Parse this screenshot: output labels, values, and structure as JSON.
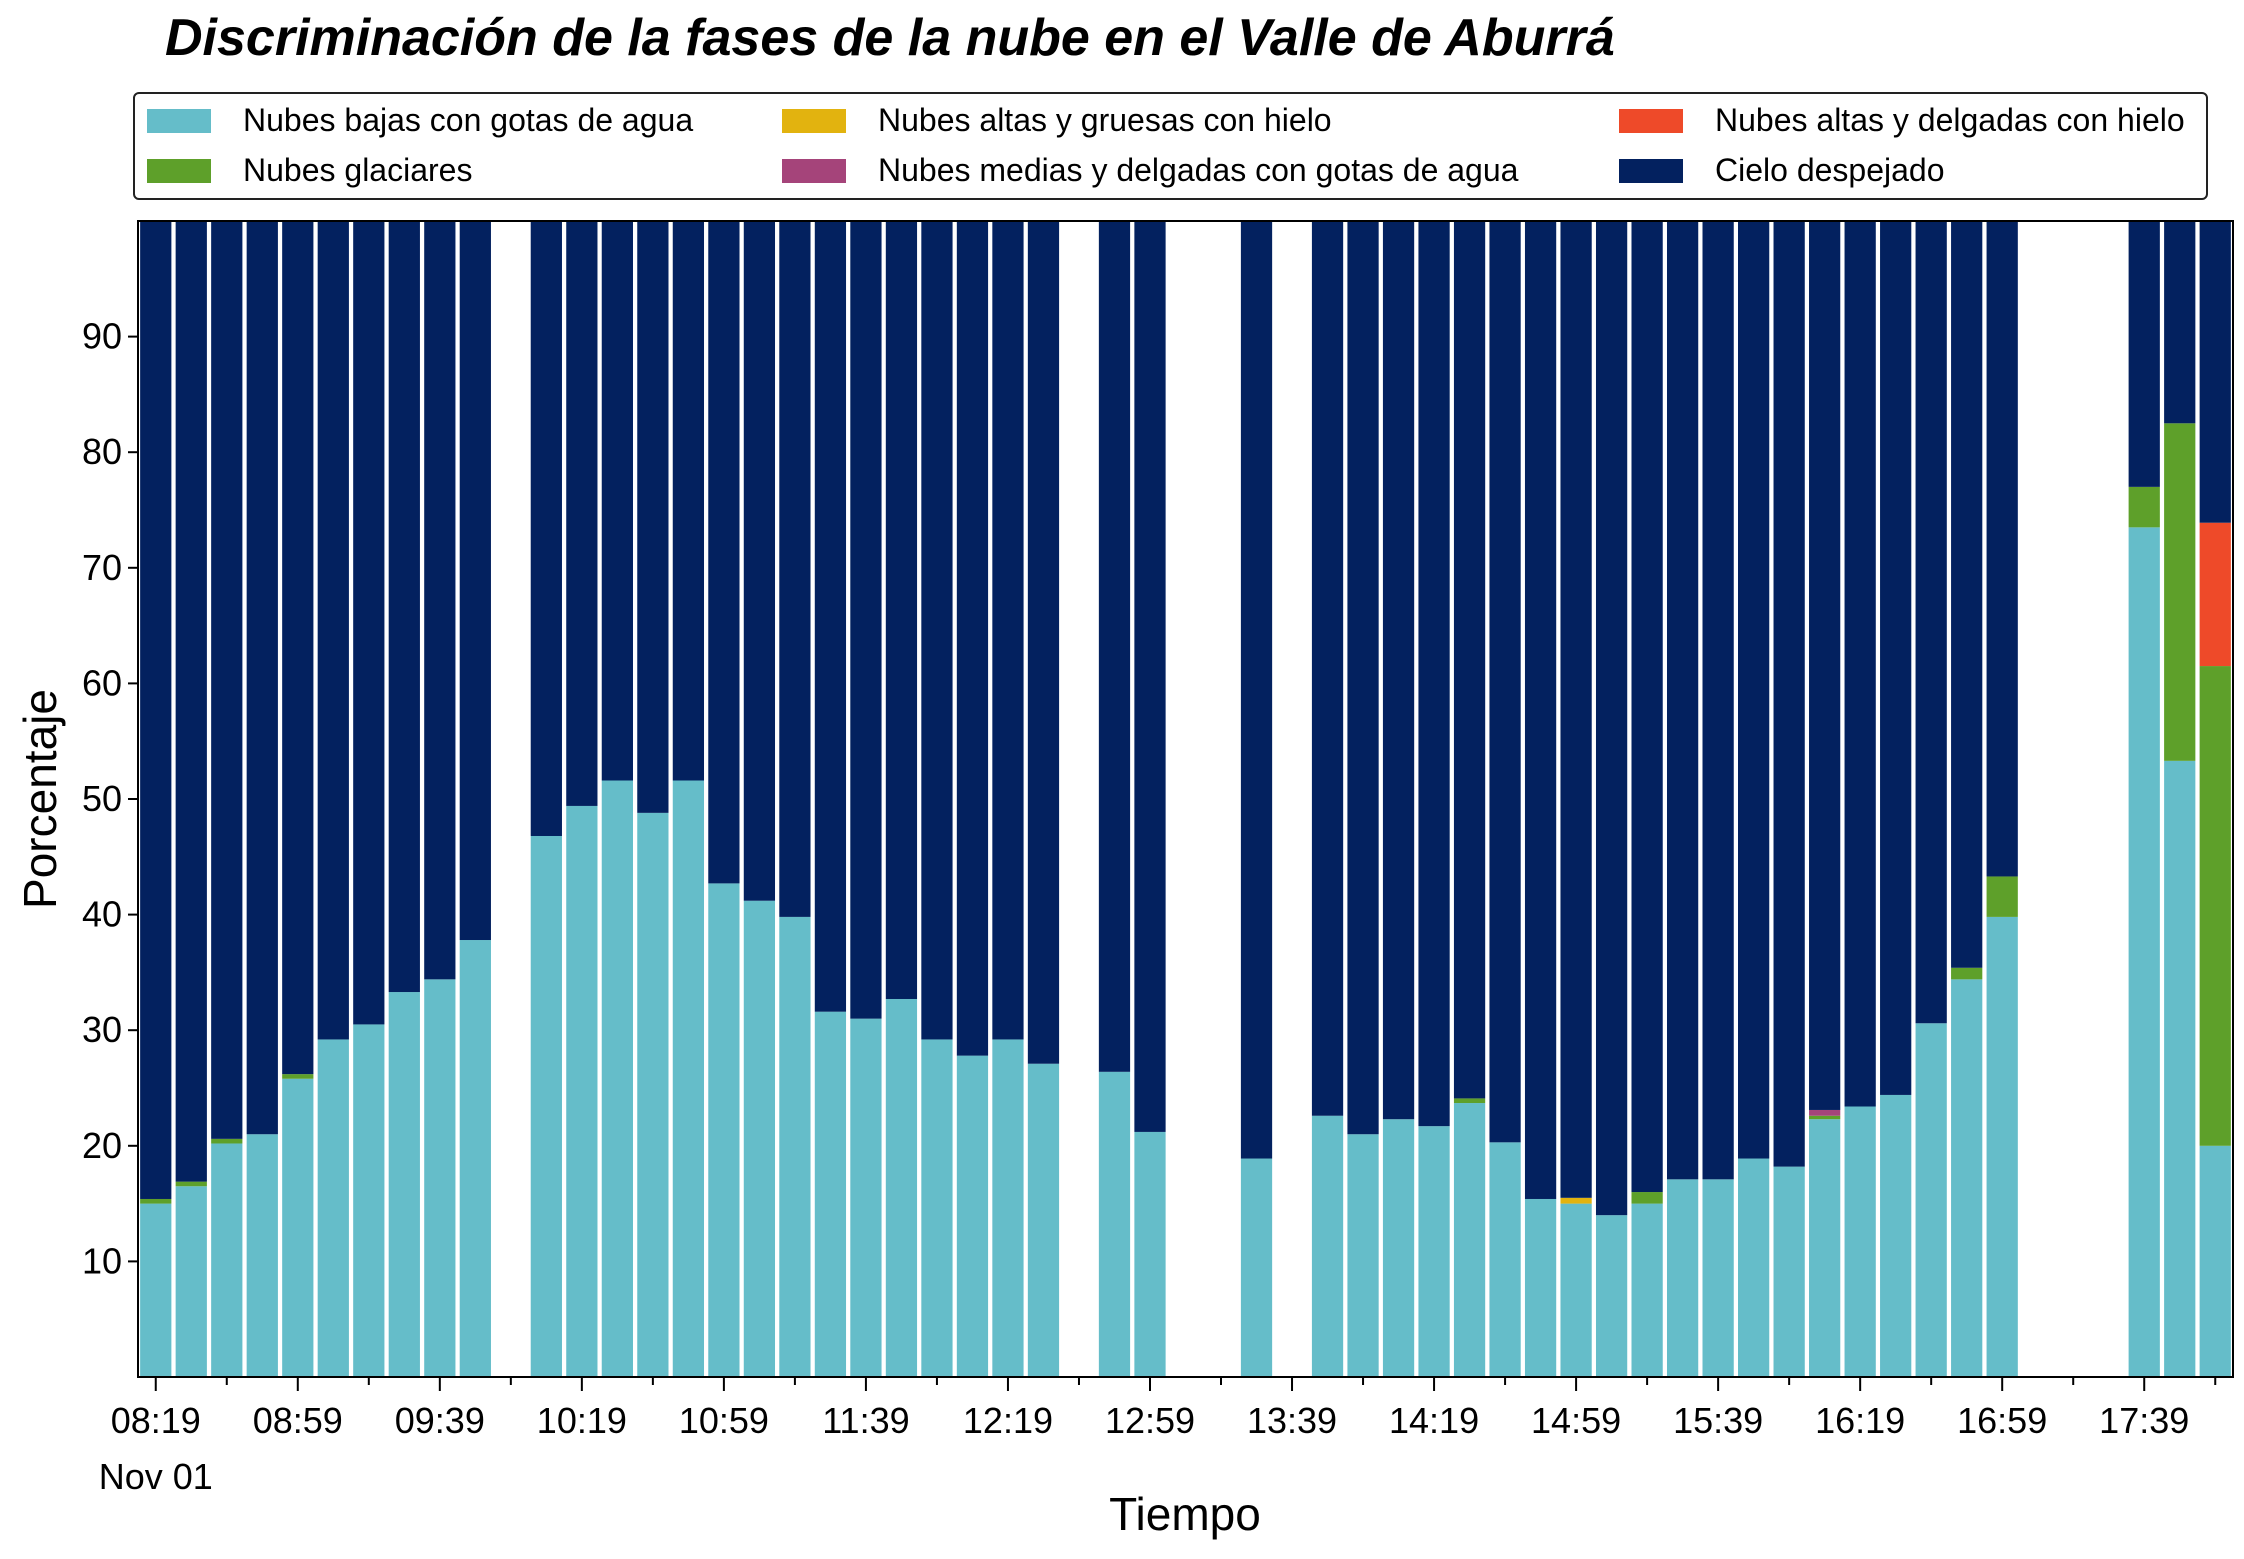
{
  "chart_data": {
    "type": "bar",
    "title": "Discriminación de la fases de la nube en el Valle de Aburrá",
    "xlabel": "Tiempo",
    "ylabel": "Porcentaje",
    "ylim": [
      0,
      100
    ],
    "yticks": [
      10,
      20,
      30,
      40,
      50,
      60,
      70,
      80,
      90
    ],
    "stacked": true,
    "grid": false,
    "legend_position": "top",
    "x_tick_labels": [
      "08:19",
      "08:59",
      "09:39",
      "10:19",
      "10:59",
      "11:39",
      "12:19",
      "12:59",
      "13:39",
      "14:19",
      "14:59",
      "15:39",
      "16:19",
      "16:59",
      "17:39"
    ],
    "x_date_label": "Nov 01",
    "categories": [
      "08:19",
      "08:29",
      "08:39",
      "08:49",
      "08:59",
      "09:09",
      "09:19",
      "09:29",
      "09:39",
      "09:49",
      "09:59",
      "10:09",
      "10:19",
      "10:29",
      "10:39",
      "10:49",
      "10:59",
      "11:09",
      "11:19",
      "11:29",
      "11:39",
      "11:49",
      "11:59",
      "12:09",
      "12:19",
      "12:29",
      "12:39",
      "12:49",
      "12:59",
      "13:09",
      "13:19",
      "13:29",
      "13:39",
      "13:49",
      "13:59",
      "14:09",
      "14:19",
      "14:29",
      "14:39",
      "14:49",
      "14:59",
      "15:09",
      "15:19",
      "15:29",
      "15:39",
      "15:49",
      "15:59",
      "16:09",
      "16:19",
      "16:29",
      "16:39",
      "16:49",
      "16:59",
      "17:09",
      "17:19",
      "17:29",
      "17:39",
      "17:49",
      "17:59"
    ],
    "series": [
      {
        "name": "Nubes bajas con gotas de agua",
        "color": "#65bdc9",
        "values": [
          15.0,
          16.5,
          20.2,
          21.0,
          25.8,
          29.2,
          30.5,
          33.3,
          34.4,
          37.8,
          null,
          46.8,
          49.4,
          51.6,
          48.8,
          51.6,
          42.7,
          41.2,
          39.8,
          31.6,
          31.0,
          32.7,
          29.2,
          27.8,
          29.2,
          27.1,
          null,
          26.4,
          21.2,
          null,
          null,
          18.9,
          null,
          22.6,
          21.0,
          22.3,
          21.7,
          23.7,
          20.3,
          15.4,
          15.0,
          14.0,
          15.0,
          17.1,
          17.1,
          18.9,
          18.2,
          22.3,
          23.4,
          24.4,
          30.6,
          34.4,
          39.8,
          null,
          null,
          null,
          73.5,
          53.3,
          20.0
        ]
      },
      {
        "name": "Nubes glaciares",
        "color": "#5ea02a",
        "values": [
          0.4,
          0.4,
          0.4,
          0,
          0.4,
          0,
          0,
          0,
          0,
          0,
          null,
          0,
          0,
          0,
          0,
          0,
          0,
          0,
          0,
          0,
          0,
          0,
          0,
          0,
          0,
          0,
          null,
          0,
          0,
          null,
          null,
          0,
          null,
          0,
          0,
          0,
          0,
          0.4,
          0,
          0,
          0,
          0,
          1.0,
          0,
          0,
          0,
          0,
          0.3,
          0,
          0,
          0,
          1.0,
          3.5,
          null,
          null,
          null,
          3.5,
          29.2,
          41.5
        ]
      },
      {
        "name": "Nubes altas y gruesas con hielo",
        "color": "#e2b30f",
        "values": [
          0,
          0,
          0,
          0,
          0,
          0,
          0,
          0,
          0,
          0,
          null,
          0,
          0,
          0,
          0,
          0,
          0,
          0,
          0,
          0,
          0,
          0,
          0,
          0,
          0,
          0,
          null,
          0,
          0,
          null,
          null,
          0,
          null,
          0,
          0,
          0,
          0,
          0,
          0,
          0,
          0.5,
          0,
          0,
          0,
          0,
          0,
          0,
          0,
          0,
          0,
          0,
          0,
          0,
          null,
          null,
          null,
          0,
          0,
          0
        ]
      },
      {
        "name": "Nubes medias y delgadas con gotas de agua",
        "color": "#a5447a",
        "values": [
          0,
          0,
          0,
          0,
          0,
          0,
          0,
          0,
          0,
          0,
          null,
          0,
          0,
          0,
          0,
          0,
          0,
          0,
          0,
          0,
          0,
          0,
          0,
          0,
          0,
          0,
          null,
          0,
          0,
          null,
          null,
          0,
          null,
          0,
          0,
          0,
          0,
          0,
          0,
          0,
          0,
          0,
          0,
          0,
          0,
          0,
          0,
          0.5,
          0,
          0,
          0,
          0,
          0,
          null,
          null,
          null,
          0,
          0,
          0
        ]
      },
      {
        "name": "Nubes altas y delgadas con hielo",
        "color": "#ee4a29",
        "values": [
          0,
          0,
          0,
          0,
          0,
          0,
          0,
          0,
          0,
          0,
          null,
          0,
          0,
          0,
          0,
          0,
          0,
          0,
          0,
          0,
          0,
          0,
          0,
          0,
          0,
          0,
          null,
          0,
          0,
          null,
          null,
          0,
          null,
          0,
          0,
          0,
          0,
          0,
          0,
          0,
          0,
          0,
          0,
          0,
          0,
          0,
          0,
          0,
          0,
          0,
          0,
          0,
          0,
          null,
          null,
          null,
          0,
          0,
          12.4
        ]
      },
      {
        "name": "Cielo despejado",
        "color": "#03215f",
        "values": [
          84.6,
          83.1,
          79.4,
          79.0,
          73.8,
          70.8,
          69.5,
          66.7,
          65.6,
          62.2,
          null,
          53.2,
          50.6,
          48.4,
          51.2,
          48.4,
          57.3,
          58.8,
          60.2,
          68.4,
          69.0,
          67.3,
          70.8,
          72.2,
          70.8,
          72.9,
          null,
          73.6,
          78.8,
          null,
          null,
          81.1,
          null,
          77.4,
          79.0,
          77.7,
          78.3,
          75.9,
          79.7,
          84.6,
          84.5,
          86.0,
          84.0,
          82.9,
          82.9,
          81.1,
          81.8,
          76.9,
          76.6,
          75.6,
          69.4,
          64.6,
          56.7,
          null,
          null,
          null,
          23.0,
          17.5,
          26.1
        ]
      }
    ]
  }
}
